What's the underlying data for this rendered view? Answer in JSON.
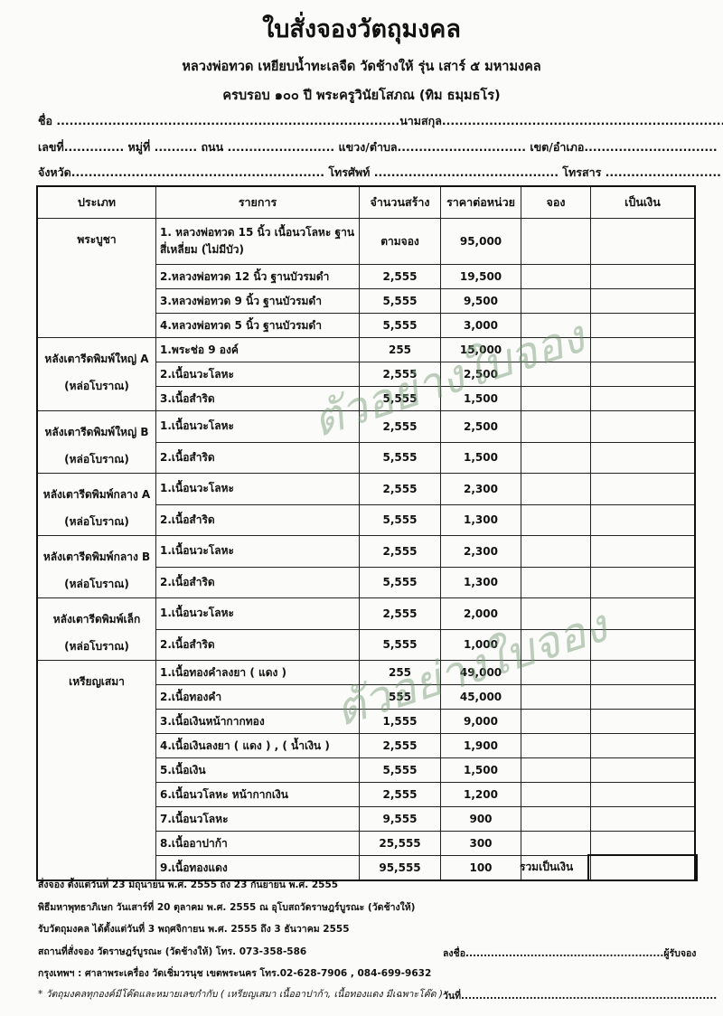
{
  "title": "ใบสั่งจองวัตถุมงคล",
  "subtitle1": "หลวงพ่อทวด เหยียบน้ำทะเลจืด วัดช้างให้ รุ่น เสาร์ ๕ มหามงคล",
  "subtitle2": "ครบรอบ ๑๐๐ ปี พระครูวินัยโสภณ (ทิม ธมฺมธโร)",
  "form": {
    "line1": "ชื่อ ................................................................................นามสกุล............................................................................",
    "line2": "เลขที่.............. หมู่ที่ .......... ถนน ......................... แขวง/ตำบล.............................. เขต/อำเภอ...............................",
    "line3": "จังหวัด........................................................... โทรศัพท์ ........................................... โทรสาร ..........................."
  },
  "table": {
    "headers": [
      "ประเภท",
      "รายการ",
      "จำนวนสร้าง",
      "ราคาต่อหน่วย",
      "จอง",
      "เป็นเงิน"
    ],
    "groups": [
      {
        "category": [
          "พระบูชา"
        ],
        "rows": [
          {
            "item": "1. หลวงพ่อทวด 15 นิ้ว เนื้อนวโลหะ ฐานสี่เหลี่ยม (ไม่มีบัว)",
            "qty": "ตามจอง",
            "price": "95,000"
          },
          {
            "item": "2.หลวงพ่อทวด 12 นิ้ว ฐานบัวรมดำ",
            "qty": "2,555",
            "price": "19,500"
          },
          {
            "item": "3.หลวงพ่อทวด 9 นิ้ว ฐานบัวรมดำ",
            "qty": "5,555",
            "price": "9,500"
          },
          {
            "item": "4.หลวงพ่อทวด 5 นิ้ว ฐานบัวรมดำ",
            "qty": "5,555",
            "price": "3,000"
          }
        ]
      },
      {
        "category": [
          "หลังเตารีดพิมพ์ใหญ่ A",
          "(หล่อโบราณ)"
        ],
        "rows": [
          {
            "item": "1.พระช่อ 9 องค์",
            "qty": "255",
            "price": "15,000"
          },
          {
            "item": "2.เนื้อนวะโลหะ",
            "qty": "2,555",
            "price": "2,500"
          },
          {
            "item": "3.เนื้อสำริด",
            "qty": "5,555",
            "price": "1,500"
          }
        ]
      },
      {
        "category": [
          "หลังเตารีดพิมพ์ใหญ่ B",
          "(หล่อโบราณ)"
        ],
        "rows": [
          {
            "item": "1.เนื้อนวะโลหะ",
            "qty": "2,555",
            "price": "2,500"
          },
          {
            "item": "2.เนื้อสำริด",
            "qty": "5,555",
            "price": "1,500"
          }
        ]
      },
      {
        "category": [
          "หลังเตารีดพิมพ์กลาง A",
          "(หล่อโบราณ)"
        ],
        "rows": [
          {
            "item": "1.เนื้อนวะโลหะ",
            "qty": "2,555",
            "price": "2,300"
          },
          {
            "item": "2.เนื้อสำริด",
            "qty": "5,555",
            "price": "1,300"
          }
        ]
      },
      {
        "category": [
          "หลังเตารีดพิมพ์กลาง B",
          "(หล่อโบราณ)"
        ],
        "rows": [
          {
            "item": "1.เนื้อนวะโลหะ",
            "qty": "2,555",
            "price": "2,300"
          },
          {
            "item": "2.เนื้อสำริด",
            "qty": "5,555",
            "price": "1,300"
          }
        ]
      },
      {
        "category": [
          "หลังเตารีดพิมพ์เล็ก",
          "(หล่อโบราณ)"
        ],
        "rows": [
          {
            "item": "1.เนื้อนวะโลหะ",
            "qty": "2,555",
            "price": "2,000"
          },
          {
            "item": "2.เนื้อสำริด",
            "qty": "5,555",
            "price": "1,000"
          }
        ]
      },
      {
        "category": [
          "เหรียญเสมา"
        ],
        "rows": [
          {
            "item": "1.เนื้อทองคำลงยา ( แดง )",
            "qty": "255",
            "price": "49,000"
          },
          {
            "item": "2.เนื้อทองคำ",
            "qty": "555",
            "price": "45,000"
          },
          {
            "item": "3.เนื้อเงินหน้ากากทอง",
            "qty": "1,555",
            "price": "9,000"
          },
          {
            "item": "4.เนื้อเงินลงยา ( แดง ) , ( น้ำเงิน )",
            "qty": "2,555",
            "price": "1,900"
          },
          {
            "item": "5.เนื้อเงิน",
            "qty": "5,555",
            "price": "1,500"
          },
          {
            "item": "6.เนื้อนวโลหะ หน้ากากเงิน",
            "qty": "2,555",
            "price": "1,200"
          },
          {
            "item": "7.เนื้อนวโลหะ",
            "qty": "9,555",
            "price": "900"
          },
          {
            "item": "8.เนื้ออาปาก้า",
            "qty": "25,555",
            "price": "300"
          },
          {
            "item": "9.เนื้อทองแดง",
            "qty": "95,555",
            "price": "100"
          }
        ]
      }
    ],
    "total_label": "รวมเป็นเงิน"
  },
  "footer": {
    "lines": [
      "สั่งจอง ตั้งแต่วันที่ 23 มิถุนายน พ.ศ. 2555 ถึง 23 กันยายน พ.ศ. 2555",
      "พิธีมหาพุทธาภิเษก วันเสาร์ที่ 20 ตุลาคม พ.ศ. 2555 ณ อุโบสถวัดราษฎร์บูรณะ (วัดช้างให้)",
      "รับวัตถุมงคล ได้ตั้งแต่วันที่ 3 พฤศจิกายน พ.ศ. 2555 ถึง 3 ธันวาคม 2555",
      "สถานที่สั่งจอง วัดราษฎร์บูรณะ (วัดช้างให้) โทร. 073-358-586",
      "กรุงเทพฯ : ศาลาพระเครื่อง วัดเชิ่มวรนุช เขตพระนคร โทร.02-628-7906 , 084-699-9632"
    ],
    "note": "* วัตถุมงคลทุกองค์มีโค๊ดและหมายเลขกำกับ ( เหรียญเสมา เนื้ออาปาก้า, เนื้อทองแดง มีเฉพาะโค๊ด )",
    "signature": "ลงชื่อ.......................................................ผู้รับจอง",
    "date": "วันที่......................................................................."
  },
  "watermark": "ตัวอย่างใบจอง"
}
